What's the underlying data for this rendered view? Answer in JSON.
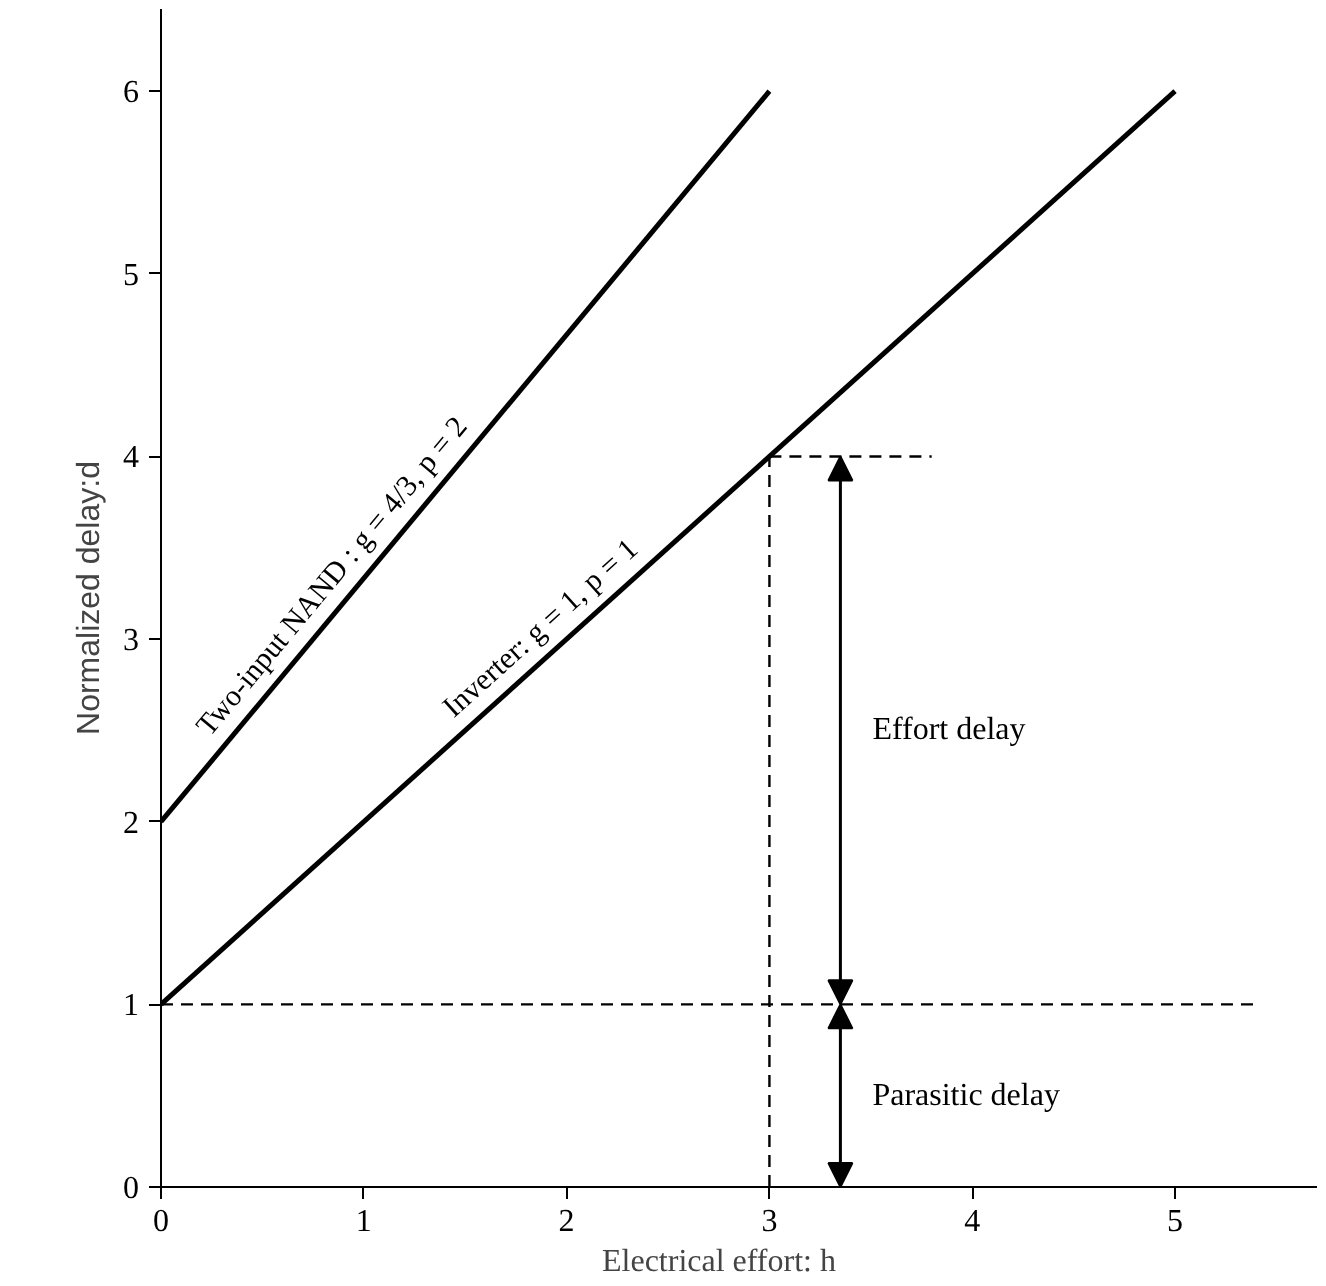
{
  "chart_data": {
    "type": "line",
    "xlabel": "Electrical effort:      h",
    "ylabel": "Normalized delay:d",
    "xlim": [
      0,
      5.7
    ],
    "ylim": [
      0,
      6.45
    ],
    "xticks": [
      0,
      1,
      2,
      3,
      4,
      5
    ],
    "yticks": [
      0,
      1,
      2,
      3,
      4,
      5,
      6
    ],
    "grid": false,
    "marker": "none",
    "line_style": "solid",
    "series": [
      {
        "name": "Two-input  NAND : g = 4/3, p = 2",
        "color": "#000000",
        "x": [
          0,
          3
        ],
        "values": [
          2,
          6
        ]
      },
      {
        "name": "Inverter:  g = 1,  p = 1",
        "color": "#000000",
        "x": [
          0,
          5
        ],
        "values": [
          1,
          6
        ]
      }
    ],
    "ref_lines": [
      {
        "axis": "y",
        "value": 1,
        "color": "#000000",
        "line_style": "dashed"
      },
      {
        "axis": "x",
        "value": 3,
        "color": "#000000",
        "line_style": "dashed"
      },
      {
        "axis": "y",
        "value": 4,
        "color": "#000000",
        "line_style": "dashed"
      }
    ],
    "annotations": [
      "Effort delay",
      "Parasitic delay"
    ]
  }
}
